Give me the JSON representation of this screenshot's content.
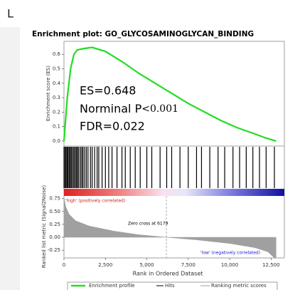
{
  "panel_label": "L",
  "chart_data": [
    {
      "type": "line",
      "title": "Enrichment plot: GO_GLYCOSAMINOGLYCAN_BINDING",
      "ylabel": "Enrichment score (ES)",
      "annotations": [
        "ES=0.648",
        "Norminal P",
        "<0.001",
        "FDR=0.022"
      ],
      "x": [
        0,
        200,
        400,
        600,
        800,
        1200,
        1700,
        2500,
        3500,
        4500,
        5500,
        6500,
        7500,
        8500,
        9500,
        10500,
        11500,
        12200,
        12800
      ],
      "series": [
        {
          "name": "Enrichment profile",
          "color": "#22dd22",
          "values": [
            0,
            0.3,
            0.5,
            0.6,
            0.63,
            0.64,
            0.648,
            0.62,
            0.55,
            0.47,
            0.4,
            0.33,
            0.26,
            0.2,
            0.14,
            0.09,
            0.05,
            0.02,
            0
          ]
        }
      ],
      "xlim": [
        0,
        13300
      ],
      "ylim": [
        -0.035,
        0.69
      ],
      "yticks": [
        {
          "value": 0,
          "label": "0.0"
        },
        0.1,
        0.2,
        0.3,
        0.4,
        0.5,
        0.6
      ]
    },
    {
      "type": "rug",
      "series": [
        {
          "name": "Hits",
          "color": "#000000",
          "values": [
            0,
            60,
            120,
            180,
            230,
            300,
            350,
            420,
            480,
            560,
            620,
            700,
            760,
            830,
            900,
            1000,
            1080,
            1150,
            1250,
            1350,
            1450,
            1600,
            1700,
            1850,
            2000,
            2100,
            2300,
            2500,
            2700,
            2900,
            3200,
            3500,
            3700,
            4000,
            4300,
            4600,
            5000,
            5300,
            5800,
            6200,
            6500,
            7000,
            7500,
            8000,
            8300,
            8800,
            9300,
            9700,
            10200,
            10600,
            11000,
            11400,
            11800,
            12200,
            12700
          ]
        }
      ],
      "xlim": [
        0,
        13300
      ]
    },
    {
      "type": "area",
      "ylabel": "Ranked list metric (Signal2Noise)",
      "xlabel": "Rank in Ordered Dataset",
      "annotations": [
        "'high' (positively correlated)",
        "Zero cross at 6179",
        "'low' (negatively correlated)"
      ],
      "zero_cross": 6179,
      "x": [
        0,
        100,
        300,
        700,
        1500,
        3000,
        4500,
        6179,
        8000,
        10000,
        11500,
        12300,
        12700,
        12800
      ],
      "series": [
        {
          "name": "Ranking metric scores",
          "color": "#a0a0a0",
          "values": [
            0.78,
            0.6,
            0.45,
            0.32,
            0.22,
            0.12,
            0.05,
            0,
            -0.05,
            -0.12,
            -0.2,
            -0.28,
            -0.4,
            -0.4
          ]
        }
      ],
      "xlim": [
        0,
        13300
      ],
      "ylim": [
        -0.4,
        0.8
      ],
      "xticks": [
        0,
        {
          "value": 2500,
          "label": "2,500"
        },
        {
          "value": 5000,
          "label": "5,000"
        },
        {
          "value": 7500,
          "label": "7,500"
        },
        {
          "value": 10000,
          "label": "10,000"
        },
        {
          "value": 12500,
          "label": "12,500"
        }
      ],
      "yticks": [
        0.75,
        {
          "value": 0.5,
          "label": "0.50"
        },
        0.25,
        {
          "value": 0,
          "label": "0.00"
        },
        -0.25
      ]
    }
  ]
}
